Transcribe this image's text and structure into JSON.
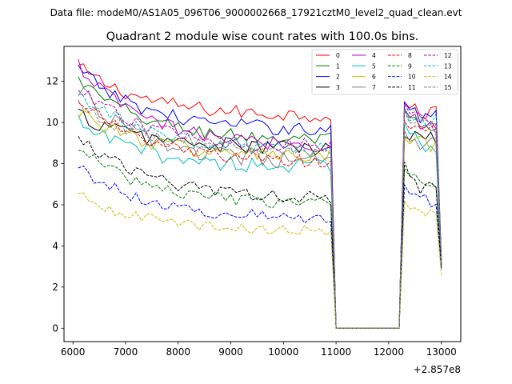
{
  "header": {
    "data_file": "Data file: modeM0/AS1A05_096T06_9000002668_17921cztM0_level2_quad_clean.evt"
  },
  "chart_data": {
    "type": "line",
    "title": "Quadrant 2 module wise count rates with 100.0s bins.",
    "xlabel": "",
    "ylabel": "",
    "x_offset_label": "+2.857e8",
    "xlim": [
      5830,
      13370
    ],
    "ylim": [
      -0.65,
      13.7
    ],
    "x_ticks": [
      6000,
      7000,
      8000,
      9000,
      10000,
      11000,
      12000,
      13000
    ],
    "y_ticks": [
      0,
      2,
      4,
      6,
      8,
      10,
      12
    ],
    "grid": false,
    "legend_position": "top-right",
    "segments": {
      "active1": {
        "start": 6100,
        "end": 10900,
        "step": 100
      },
      "gap": {
        "x": [
          11000,
          12200
        ],
        "value": 0
      },
      "active2": {
        "start": 12300,
        "end": 13000,
        "step": 100
      }
    },
    "series": [
      {
        "name": "0",
        "color": "#ff0000",
        "dash": "solid",
        "start": 12.7,
        "plateau": 10.3,
        "seg2_start": 10.9,
        "seg2_mid": 10.4,
        "seg2_end": 10.6,
        "end_value": 3.4,
        "noise": 0.35
      },
      {
        "name": "1",
        "color": "#008000",
        "dash": "solid",
        "start": 12.1,
        "plateau": 9.1,
        "seg2_start": 10.6,
        "seg2_mid": 9.6,
        "seg2_end": 9.6,
        "end_value": 3.1,
        "noise": 0.35
      },
      {
        "name": "2",
        "color": "#0000ff",
        "dash": "solid",
        "start": 12.6,
        "plateau": 9.6,
        "seg2_start": 10.9,
        "seg2_mid": 10.2,
        "seg2_end": 10.6,
        "end_value": 3.3,
        "noise": 0.35
      },
      {
        "name": "3",
        "color": "#000000",
        "dash": "solid",
        "start": 10.4,
        "plateau": 8.7,
        "seg2_start": 9.2,
        "seg2_mid": 9.3,
        "seg2_end": 9.1,
        "end_value": 3.0,
        "noise": 0.4
      },
      {
        "name": "4",
        "color": "#bf00bf",
        "dash": "solid",
        "start": 12.8,
        "plateau": 8.8,
        "seg2_start": 10.5,
        "seg2_mid": 10.0,
        "seg2_end": 9.9,
        "end_value": 3.3,
        "noise": 0.35
      },
      {
        "name": "5",
        "color": "#00bfbf",
        "dash": "solid",
        "start": 10.0,
        "plateau": 7.8,
        "seg2_start": 9.8,
        "seg2_mid": 9.0,
        "seg2_end": 8.9,
        "end_value": 3.0,
        "noise": 0.4
      },
      {
        "name": "6",
        "color": "#bfbf00",
        "dash": "solid",
        "start": 10.6,
        "plateau": 8.3,
        "seg2_start": 9.1,
        "seg2_mid": 9.0,
        "seg2_end": 8.8,
        "end_value": 3.2,
        "noise": 0.4
      },
      {
        "name": "7",
        "color": "#808080",
        "dash": "solid",
        "start": 11.6,
        "plateau": 8.0,
        "seg2_start": 9.4,
        "seg2_mid": 8.8,
        "seg2_end": 9.0,
        "end_value": 3.1,
        "noise": 0.4
      },
      {
        "name": "8",
        "color": "#ff0000",
        "dash": "dashed",
        "start": 11.2,
        "plateau": 8.0,
        "seg2_start": 9.9,
        "seg2_mid": 9.6,
        "seg2_end": 9.8,
        "end_value": 3.2,
        "noise": 0.35
      },
      {
        "name": "9",
        "color": "#008000",
        "dash": "dashed",
        "start": 8.8,
        "plateau": 6.0,
        "seg2_start": 7.6,
        "seg2_mid": 7.3,
        "seg2_end": 6.9,
        "end_value": 3.0,
        "noise": 0.3
      },
      {
        "name": "10",
        "color": "#0000ff",
        "dash": "dashed",
        "start": 7.9,
        "plateau": 5.3,
        "seg2_start": 6.8,
        "seg2_mid": 6.3,
        "seg2_end": 6.1,
        "end_value": 2.9,
        "noise": 0.3
      },
      {
        "name": "11",
        "color": "#000000",
        "dash": "dashed",
        "start": 9.4,
        "plateau": 6.3,
        "seg2_start": 7.9,
        "seg2_mid": 6.8,
        "seg2_end": 7.0,
        "end_value": 3.0,
        "noise": 0.3
      },
      {
        "name": "12",
        "color": "#bf00bf",
        "dash": "dashed",
        "start": 11.6,
        "plateau": 8.8,
        "seg2_start": 10.7,
        "seg2_mid": 10.4,
        "seg2_end": 9.7,
        "end_value": 3.2,
        "noise": 0.35
      },
      {
        "name": "13",
        "color": "#00bfbf",
        "dash": "dashed",
        "start": 11.4,
        "plateau": 8.6,
        "seg2_start": 10.4,
        "seg2_mid": 10.0,
        "seg2_end": 10.1,
        "end_value": 3.2,
        "noise": 0.35
      },
      {
        "name": "14",
        "color": "#bfbf00",
        "dash": "dashed",
        "start": 6.5,
        "plateau": 4.7,
        "seg2_start": 6.0,
        "seg2_mid": 5.8,
        "seg2_end": 5.4,
        "end_value": 2.6,
        "noise": 0.25
      },
      {
        "name": "15",
        "color": "#808080",
        "dash": "dashed",
        "start": 11.0,
        "plateau": 8.6,
        "seg2_start": 10.3,
        "seg2_mid": 9.9,
        "seg2_end": 9.8,
        "end_value": 3.1,
        "noise": 0.35
      }
    ]
  }
}
